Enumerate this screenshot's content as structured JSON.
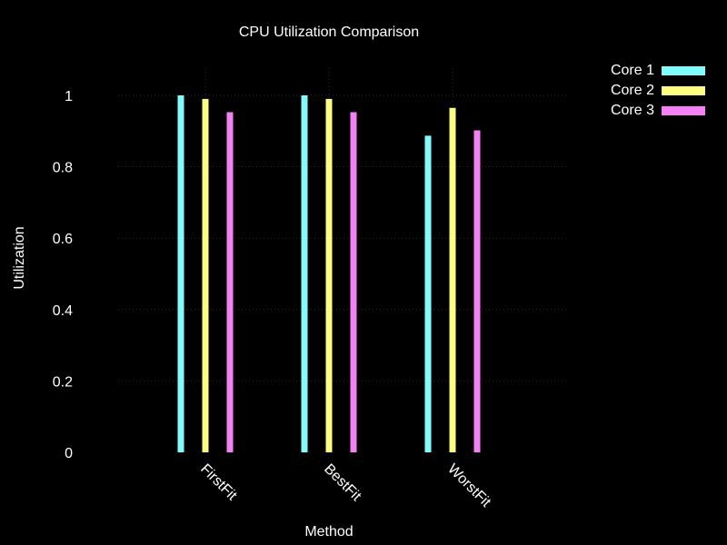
{
  "chart_data": {
    "type": "bar",
    "title": "CPU Utilization Comparison",
    "xlabel": "Method",
    "ylabel": "Utilization",
    "categories": [
      "FirstFit",
      "BestFit",
      "WorstFit"
    ],
    "series": [
      {
        "name": "Core 1",
        "color": "#7ffdfd",
        "values": [
          1.0,
          1.0,
          0.887
        ]
      },
      {
        "name": "Core 2",
        "color": "#fdfd7f",
        "values": [
          0.99,
          0.99,
          0.965
        ]
      },
      {
        "name": "Core 3",
        "color": "#f57ff5",
        "values": [
          0.953,
          0.953,
          0.902
        ]
      }
    ],
    "ylim": [
      0,
      1
    ],
    "yticks": [
      "0",
      "0.2",
      "0.4",
      "0.6",
      "0.8",
      "1"
    ],
    "grid": true,
    "legend_position": "top-right"
  }
}
